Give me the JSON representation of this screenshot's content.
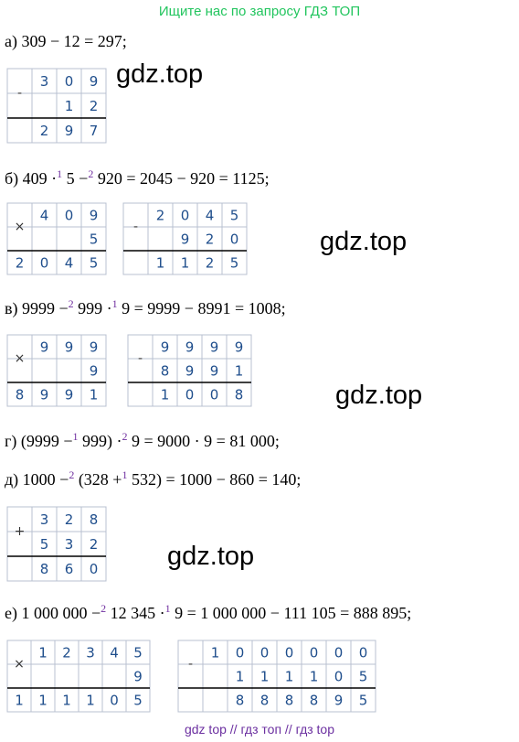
{
  "header": "Ищите нас по запросу ГДЗ ТОП",
  "problems": [
    {
      "parts": [
        {
          "text": "а) 309 − 12 = 297;"
        }
      ],
      "grids": [
        {
          "op": "-",
          "rows": [
            [
              null,
              "3",
              "0",
              "9"
            ],
            [
              null,
              null,
              "1",
              "2"
            ],
            [
              null,
              "2",
              "9",
              "7"
            ]
          ]
        }
      ]
    },
    {
      "parts": [
        {
          "text": "б) 409 ·"
        },
        {
          "sup": "1"
        },
        {
          "text": " 5 −"
        },
        {
          "sup": "2"
        },
        {
          "text": " 920 = 2045 − 920 = 1125;"
        }
      ],
      "grids": [
        {
          "op": "×",
          "rows": [
            [
              null,
              "4",
              "0",
              "9"
            ],
            [
              null,
              null,
              null,
              "5"
            ],
            [
              "2",
              "0",
              "4",
              "5"
            ]
          ]
        },
        {
          "op": "-",
          "rows": [
            [
              null,
              "2",
              "0",
              "4",
              "5"
            ],
            [
              null,
              null,
              "9",
              "2",
              "0"
            ],
            [
              null,
              "1",
              "1",
              "2",
              "5"
            ]
          ]
        }
      ]
    },
    {
      "parts": [
        {
          "text": "в) 9999 −"
        },
        {
          "sup": "2"
        },
        {
          "text": " 999 ·"
        },
        {
          "sup": "1"
        },
        {
          "text": " 9 = 9999 − 8991 = 1008;"
        }
      ],
      "grids": [
        {
          "op": "×",
          "rows": [
            [
              null,
              "9",
              "9",
              "9"
            ],
            [
              null,
              null,
              null,
              "9"
            ],
            [
              "8",
              "9",
              "9",
              "1"
            ]
          ]
        },
        {
          "op": "-",
          "rows": [
            [
              null,
              "9",
              "9",
              "9",
              "9"
            ],
            [
              null,
              "8",
              "9",
              "9",
              "1"
            ],
            [
              null,
              "1",
              "0",
              "0",
              "8"
            ]
          ]
        }
      ]
    },
    {
      "parts": [
        {
          "text": "г) (9999 −"
        },
        {
          "sup": "1"
        },
        {
          "text": " 999) ·"
        },
        {
          "sup": "2"
        },
        {
          "text": " 9 = 9000 · 9 = 81 000;"
        }
      ],
      "grids": []
    },
    {
      "parts": [
        {
          "text": "д) 1000 −"
        },
        {
          "sup": "2"
        },
        {
          "text": " (328 +"
        },
        {
          "sup": "1"
        },
        {
          "text": " 532) = 1000 − 860 = 140;"
        }
      ],
      "grids": [
        {
          "op": "+",
          "rows": [
            [
              null,
              "3",
              "2",
              "8"
            ],
            [
              null,
              "5",
              "3",
              "2"
            ],
            [
              null,
              "8",
              "6",
              "0"
            ]
          ]
        }
      ]
    },
    {
      "parts": [
        {
          "text": "е) 1 000 000 −"
        },
        {
          "sup": "2"
        },
        {
          "text": " 12 345 ·"
        },
        {
          "sup": "1"
        },
        {
          "text": " 9 = 1 000 000 − 111 105 = 888 895;"
        }
      ],
      "grids": [
        {
          "op": "×",
          "rows": [
            [
              null,
              "1",
              "2",
              "3",
              "4",
              "5"
            ],
            [
              null,
              null,
              null,
              null,
              null,
              "9"
            ],
            [
              "1",
              "1",
              "1",
              "1",
              "0",
              "5"
            ]
          ]
        },
        {
          "op": "-",
          "rows": [
            [
              null,
              "1",
              "0",
              "0",
              "0",
              "0",
              "0",
              "0"
            ],
            [
              null,
              null,
              "1",
              "1",
              "1",
              "1",
              "0",
              "5"
            ],
            [
              null,
              null,
              "8",
              "8",
              "8",
              "8",
              "9",
              "5"
            ]
          ]
        }
      ]
    }
  ],
  "watermarks": [
    "gdz.top",
    "gdz.top",
    "gdz.top",
    "gdz.top"
  ],
  "footer": "gdz top // гдз топ // гдз top"
}
